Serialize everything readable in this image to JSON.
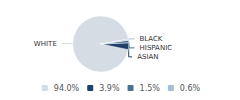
{
  "chart_data": {
    "type": "pie",
    "categories": [
      "WHITE",
      "ASIAN",
      "HISPANIC",
      "BLACK"
    ],
    "values": [
      94.0,
      3.9,
      1.5,
      0.6
    ],
    "value_labels": [
      "94.0%",
      "3.9%",
      "1.5%",
      "0.6%"
    ],
    "colors": [
      "#d6dce4",
      "#1f4068",
      "#4a7197",
      "#a8bdd0"
    ],
    "legend": "bottom"
  }
}
